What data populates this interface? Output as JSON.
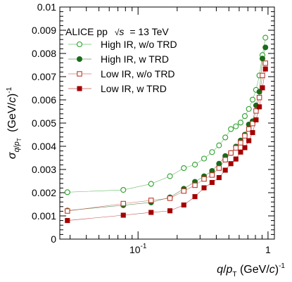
{
  "chart_data": {
    "type": "scatter",
    "title": "ALICE pp",
    "title_sqrt": "s",
    "title_energy": "= 13 TeV",
    "xlabel": "q/p_T (GeV/c)^-1",
    "ylabel": "σ_{q/p_T} (GeV/c)^-1",
    "x_scale": "log",
    "xlim": [
      0.025,
      1.12
    ],
    "ylim": [
      0,
      0.01
    ],
    "yticks": [
      "0",
      "0.001",
      "0.002",
      "0.003",
      "0.004",
      "0.005",
      "0.006",
      "0.007",
      "0.008",
      "0.009",
      "0.01"
    ],
    "xticks": [
      "10^-1",
      "1"
    ],
    "grid": false,
    "legend_position": "top-left",
    "series": [
      {
        "name": "High IR, w/o TRD",
        "color": "#2ca02c",
        "marker": "open-circle",
        "x": [
          0.0286,
          0.077,
          0.126,
          0.176,
          0.225,
          0.274,
          0.322,
          0.371,
          0.42,
          0.469,
          0.518,
          0.566,
          0.615,
          0.663,
          0.712,
          0.761,
          0.809,
          0.858,
          0.906,
          0.955
        ],
        "y": [
          0.00202,
          0.00212,
          0.00238,
          0.00271,
          0.00306,
          0.00321,
          0.00347,
          0.00375,
          0.00404,
          0.00438,
          0.00474,
          0.00486,
          0.00502,
          0.0053,
          0.00561,
          0.00601,
          0.00643,
          0.00705,
          0.00793,
          0.00868
        ]
      },
      {
        "name": "High IR, w TRD",
        "color": "#1a6b1a",
        "marker": "filled-circle",
        "x": [
          0.0286,
          0.077,
          0.126,
          0.176,
          0.225,
          0.274,
          0.322,
          0.371,
          0.42,
          0.469,
          0.518,
          0.566,
          0.615,
          0.663,
          0.712,
          0.761,
          0.809,
          0.858,
          0.906,
          0.955
        ],
        "y": [
          0.00123,
          0.00146,
          0.00158,
          0.0018,
          0.00217,
          0.00247,
          0.00271,
          0.00294,
          0.00325,
          0.00358,
          0.00371,
          0.00399,
          0.00425,
          0.0045,
          0.00494,
          0.00508,
          0.00576,
          0.00635,
          0.00778,
          0.00826
        ]
      },
      {
        "name": "Low IR, w/o TRD",
        "color": "#c0392b",
        "marker": "open-square",
        "x": [
          0.0286,
          0.077,
          0.126,
          0.176,
          0.225,
          0.274,
          0.322,
          0.371,
          0.42,
          0.469,
          0.518,
          0.566,
          0.615,
          0.663,
          0.712,
          0.761,
          0.809,
          0.858,
          0.906,
          0.955
        ],
        "y": [
          0.00121,
          0.00153,
          0.00167,
          0.00176,
          0.00207,
          0.00232,
          0.00259,
          0.00276,
          0.00306,
          0.00342,
          0.00371,
          0.00393,
          0.00415,
          0.00445,
          0.00474,
          0.00498,
          0.00552,
          0.0061,
          0.00705,
          0.00758
        ]
      },
      {
        "name": "Low IR, w TRD",
        "color": "#a50000",
        "marker": "filled-square",
        "x": [
          0.0286,
          0.077,
          0.126,
          0.176,
          0.225,
          0.274,
          0.322,
          0.371,
          0.42,
          0.469,
          0.518,
          0.566,
          0.615,
          0.663,
          0.712,
          0.761,
          0.809,
          0.858,
          0.906,
          0.955
        ],
        "y": [
          0.0008,
          0.00103,
          0.00115,
          0.00122,
          0.00147,
          0.00183,
          0.00221,
          0.00244,
          0.00265,
          0.00297,
          0.00325,
          0.00345,
          0.00375,
          0.00394,
          0.00424,
          0.00459,
          0.00514,
          0.0057,
          0.00652,
          0.00733
        ]
      }
    ]
  }
}
